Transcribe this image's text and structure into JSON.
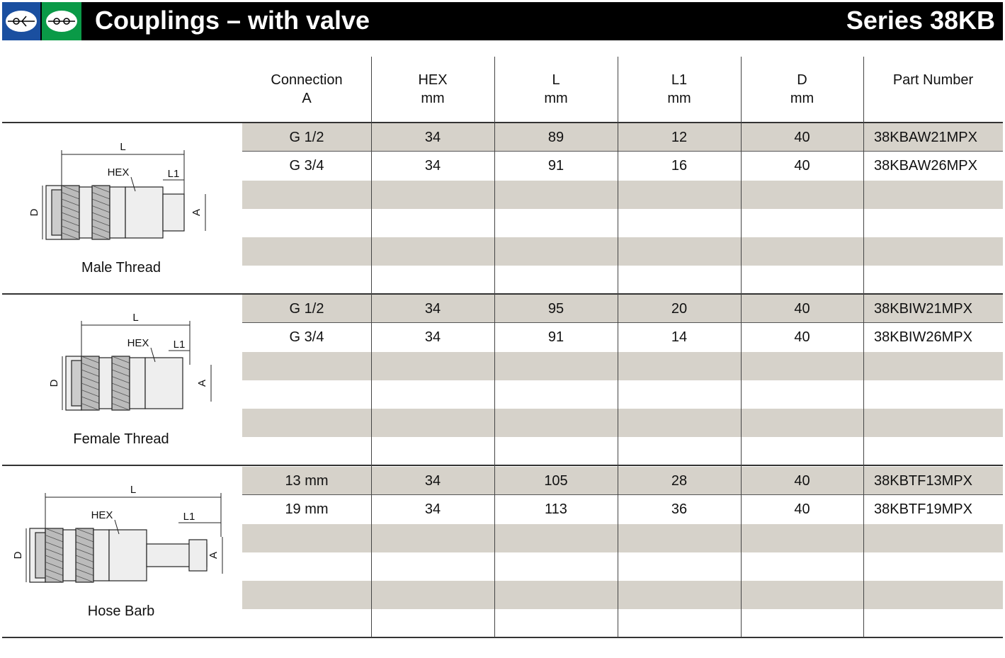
{
  "header": {
    "title": "Couplings – with valve",
    "series": "Series 38KB"
  },
  "table": {
    "columns": [
      [
        "Connection",
        "A"
      ],
      [
        "HEX",
        "mm"
      ],
      [
        "L",
        "mm"
      ],
      [
        "L1",
        "mm"
      ],
      [
        "D",
        "mm"
      ],
      [
        "Part Number"
      ]
    ],
    "groups": [
      {
        "name": "Male Thread",
        "drawing_labels": [
          "L",
          "HEX",
          "L1",
          "D",
          "A"
        ],
        "rows": [
          [
            "G 1/2",
            "34",
            "89",
            "12",
            "40",
            "38KBAW21MPX"
          ],
          [
            "G 3/4",
            "34",
            "91",
            "16",
            "40",
            "38KBAW26MPX"
          ]
        ]
      },
      {
        "name": "Female Thread",
        "drawing_labels": [
          "L",
          "HEX",
          "L1",
          "D",
          "A"
        ],
        "rows": [
          [
            "G 1/2",
            "34",
            "95",
            "20",
            "40",
            "38KBIW21MPX"
          ],
          [
            "G 3/4",
            "34",
            "91",
            "14",
            "40",
            "38KBIW26MPX"
          ]
        ]
      },
      {
        "name": "Hose Barb",
        "drawing_labels": [
          "L",
          "HEX",
          "L1",
          "D",
          "A"
        ],
        "rows": [
          [
            "13 mm",
            "34",
            "105",
            "28",
            "40",
            "38KBTF13MPX"
          ],
          [
            "19 mm",
            "34",
            "113",
            "36",
            "40",
            "38KBTF19MPX"
          ]
        ]
      }
    ]
  }
}
